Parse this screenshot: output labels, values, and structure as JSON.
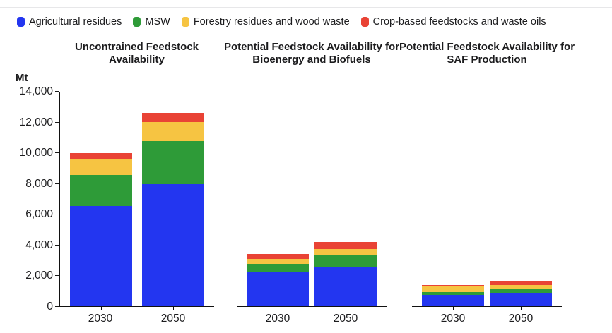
{
  "chart_data": {
    "type": "bar",
    "stacked": true,
    "unit": "Mt",
    "grid": false,
    "legend_position": "top",
    "y_axis": {
      "label": "Mt",
      "min": 0,
      "max": 14000,
      "tick_step": 2000,
      "tick_labels": [
        "0",
        "2,000",
        "4,000",
        "6,000",
        "8,000",
        "10,000",
        "12,000",
        "14,000"
      ]
    },
    "series": [
      {
        "key": "agricultural-residues",
        "name": "Agricultural residues",
        "color": "#2336F0"
      },
      {
        "key": "msw",
        "name": "MSW",
        "color": "#2E9B38"
      },
      {
        "key": "forestry-residues-wood-waste",
        "name": "Forestry residues and wood waste",
        "color": "#F6C442"
      },
      {
        "key": "crop-based-feedstocks-waste-oils",
        "name": "Crop-based feedstocks and waste oils",
        "color": "#E94335"
      }
    ],
    "panels": [
      {
        "title": "Uncontrained Feedstock Availability",
        "title_lines": [
          "Uncontrained Feedstock",
          "Availability"
        ],
        "bars": [
          {
            "category": "2030",
            "values": [
              6550,
              2000,
              1050,
              400
            ],
            "total": 10000
          },
          {
            "category": "2050",
            "values": [
              7950,
              2850,
              1200,
              600
            ],
            "total": 12600
          }
        ]
      },
      {
        "title": "Potential Feedstock Availability for Bioenergy and Biofuels",
        "title_lines": [
          "Potential Feedstock Availability for",
          "Bioenergy and Biofuels"
        ],
        "bars": [
          {
            "category": "2030",
            "values": [
              2200,
              550,
              350,
              300
            ],
            "total": 3400
          },
          {
            "category": "2050",
            "values": [
              2550,
              750,
              450,
              450
            ],
            "total": 4200
          }
        ]
      },
      {
        "title": "Potential Feedstock Availability for SAF Production",
        "title_lines": [
          "Potential Feedstock Availability for",
          "SAF Production"
        ],
        "bars": [
          {
            "category": "2030",
            "values": [
              750,
              180,
              360,
              100
            ],
            "total": 1390
          },
          {
            "category": "2050",
            "values": [
              860,
              240,
              280,
              270
            ],
            "total": 1650
          }
        ]
      }
    ]
  }
}
